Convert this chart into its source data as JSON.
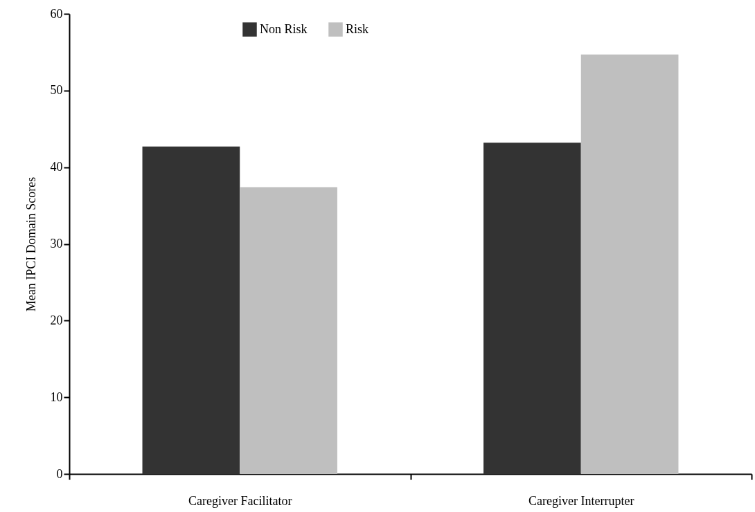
{
  "chart_data": {
    "type": "bar",
    "ylabel": "Mean IPCI Domain Scores",
    "categories": [
      "Caregiver Facilitator",
      "Caregiver Interrupter"
    ],
    "series": [
      {
        "name": "Non Risk",
        "color": "#333333",
        "values": [
          42.7,
          43.2
        ]
      },
      {
        "name": "Risk",
        "color": "#bfbfbf",
        "values": [
          37.4,
          54.7
        ]
      }
    ],
    "ylim": [
      0,
      60
    ],
    "yticks": [
      0,
      10,
      20,
      30,
      40,
      50,
      60
    ],
    "grid": false,
    "legend": "top"
  }
}
